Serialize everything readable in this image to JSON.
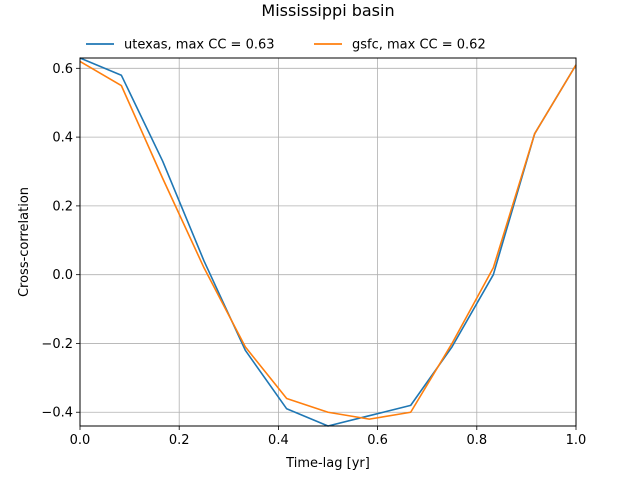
{
  "chart_data": {
    "type": "line",
    "title": "Mississippi basin",
    "xlabel": "Time-lag [yr]",
    "ylabel": "Cross-correlation",
    "xlim": [
      0.0,
      1.0
    ],
    "ylim": [
      -0.44,
      0.63
    ],
    "xticks": [
      0.0,
      0.2,
      0.4,
      0.6,
      0.8,
      1.0
    ],
    "yticks": [
      -0.4,
      -0.2,
      0.0,
      0.2,
      0.4,
      0.6
    ],
    "xtick_labels": [
      "0.0",
      "0.2",
      "0.4",
      "0.6",
      "0.8",
      "1.0"
    ],
    "ytick_labels": [
      "−0.4",
      "−0.2",
      "0.0",
      "0.2",
      "0.4",
      "0.6"
    ],
    "grid": true,
    "legend_position": "top, above plot",
    "series": [
      {
        "name": "utexas, max CC = 0.63",
        "color": "#1f77b4",
        "x": [
          0.0,
          0.0833,
          0.1667,
          0.25,
          0.3333,
          0.4167,
          0.5,
          0.5833,
          0.6667,
          0.75,
          0.8333,
          0.9167,
          1.0
        ],
        "y": [
          0.63,
          0.58,
          0.33,
          0.04,
          -0.22,
          -0.39,
          -0.44,
          -0.41,
          -0.38,
          -0.21,
          0.0,
          0.41,
          0.61
        ]
      },
      {
        "name": "gsfc, max CC = 0.62",
        "color": "#ff7f0e",
        "x": [
          0.0,
          0.0833,
          0.1667,
          0.25,
          0.3333,
          0.4167,
          0.5,
          0.5833,
          0.6667,
          0.75,
          0.8333,
          0.9167,
          1.0
        ],
        "y": [
          0.62,
          0.55,
          0.28,
          0.02,
          -0.21,
          -0.36,
          -0.4,
          -0.42,
          -0.4,
          -0.2,
          0.02,
          0.41,
          0.61
        ]
      }
    ]
  }
}
